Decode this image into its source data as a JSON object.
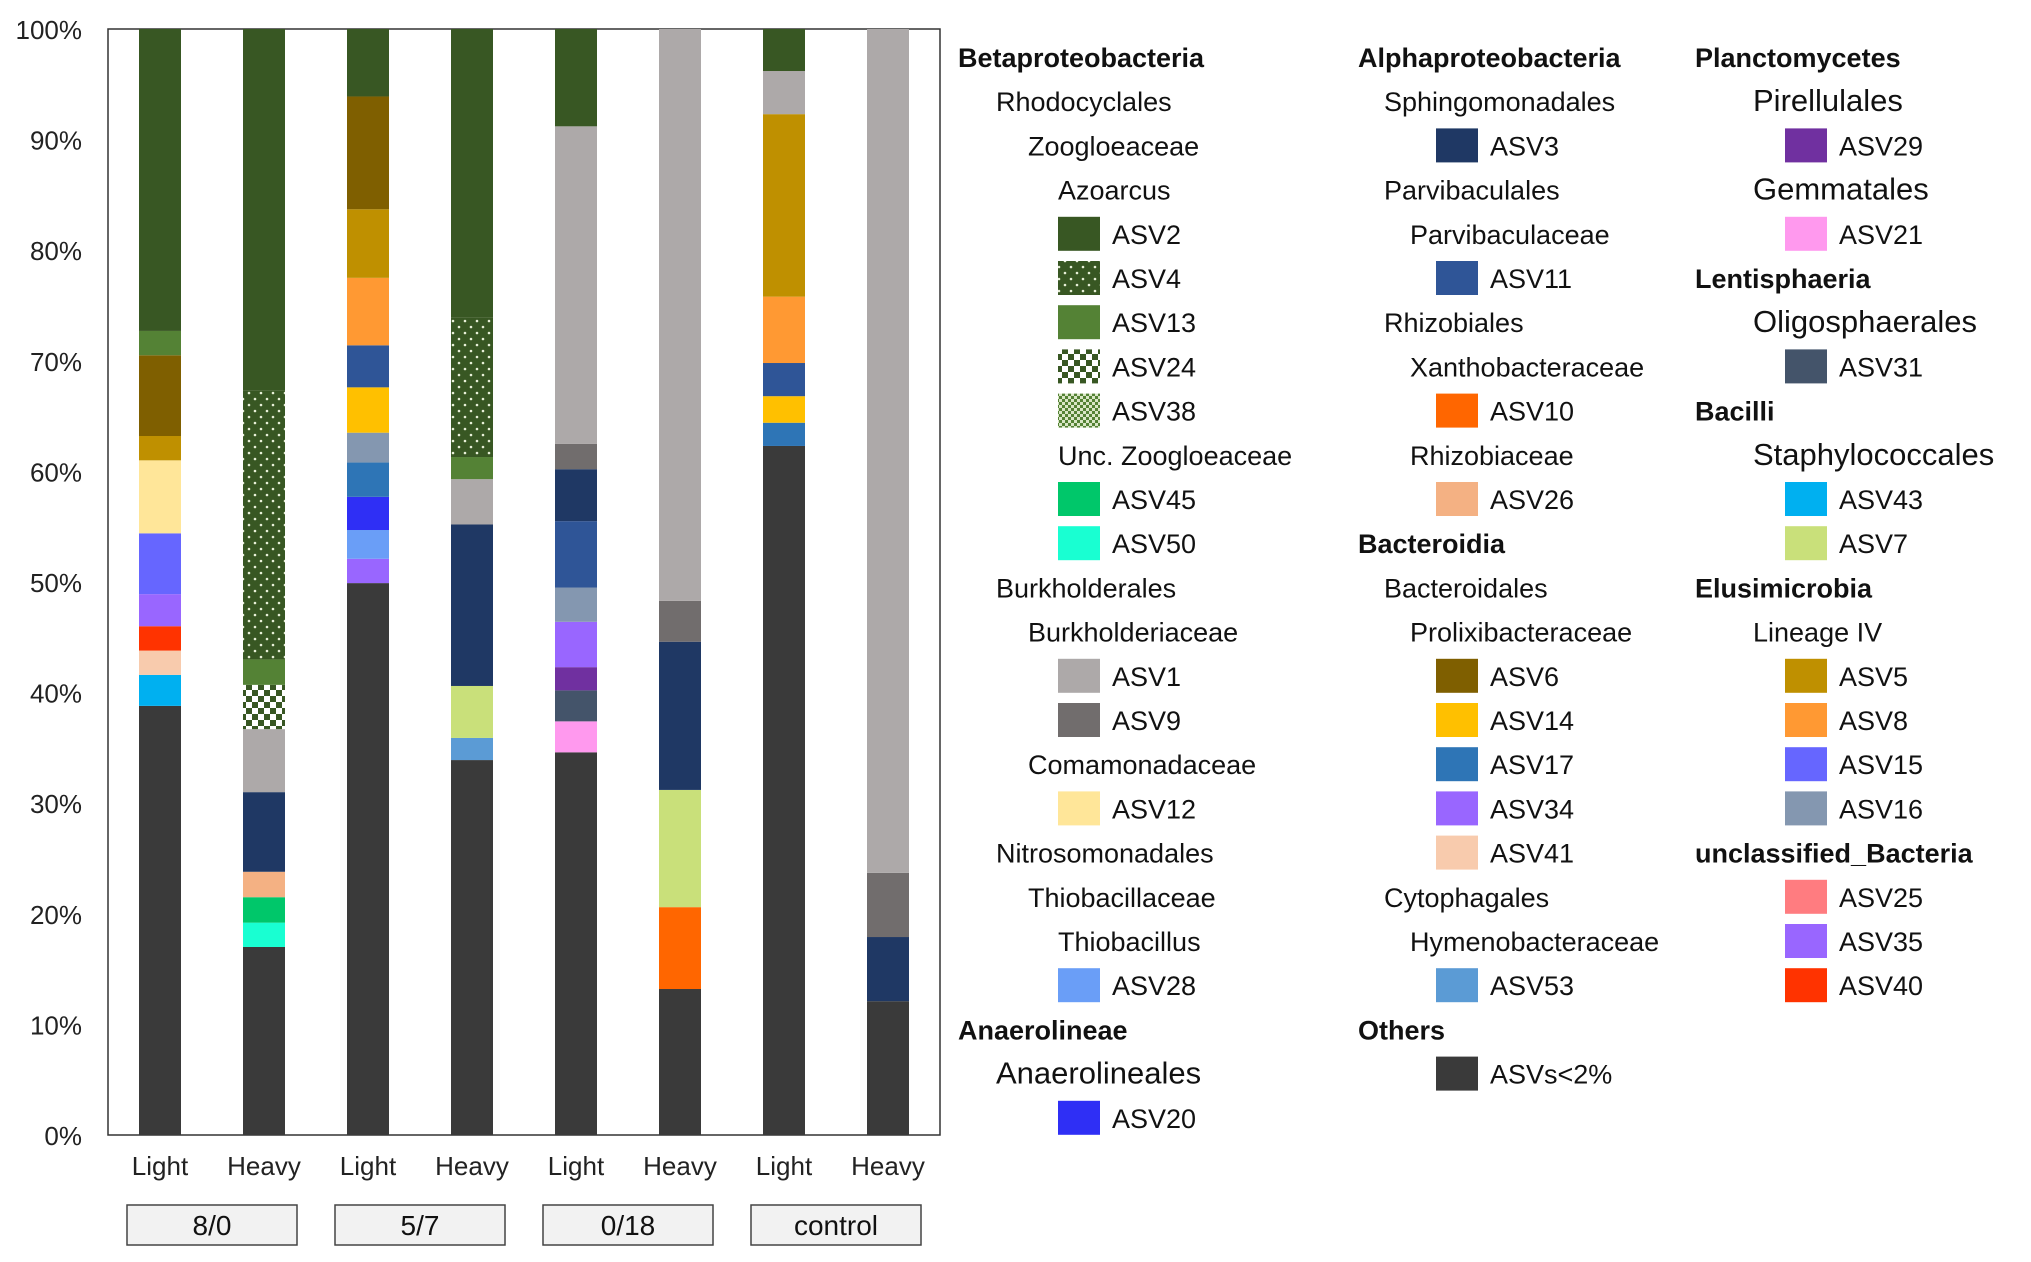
{
  "chart_data": {
    "type": "bar",
    "stacked": true,
    "percent": true,
    "ylim": [
      0,
      100
    ],
    "yticks": [
      "0%",
      "10%",
      "20%",
      "30%",
      "40%",
      "50%",
      "60%",
      "70%",
      "80%",
      "90%",
      "100%"
    ],
    "categories": [
      "Light",
      "Heavy",
      "Light",
      "Heavy",
      "Light",
      "Heavy",
      "Light",
      "Heavy"
    ],
    "groups": [
      {
        "label": "8/0",
        "members": [
          0,
          1
        ]
      },
      {
        "label": "5/7",
        "members": [
          2,
          3
        ]
      },
      {
        "label": "0/18",
        "members": [
          4,
          5
        ]
      },
      {
        "label": "control",
        "members": [
          6,
          7
        ]
      }
    ],
    "colors": {
      "ASV2": "#385723",
      "ASV4": "#385723",
      "ASV13": "#548235",
      "ASV24": "#385723",
      "ASV38": "#548235",
      "ASV45": "#00c76a",
      "ASV50": "#19ffd2",
      "ASV1": "#ada9a9",
      "ASV9": "#716d6d",
      "ASV12": "#ffe699",
      "ASV28": "#6a9ef7",
      "ASV20": "#2f2ff5",
      "ASV3": "#1f3864",
      "ASV11": "#2f5597",
      "ASV10": "#ff6600",
      "ASV26": "#f4b183",
      "ASV6": "#7f5f00",
      "ASV14": "#ffc000",
      "ASV17": "#2e75b6",
      "ASV34": "#9966ff",
      "ASV41": "#f8cbad",
      "ASV53": "#5b9bd5",
      "ASVs<2%": "#3a3a3a",
      "ASV29": "#7030a0",
      "ASV21": "#ff99ee",
      "ASV31": "#44546a",
      "ASV43": "#00b0f0",
      "ASV7": "#c9e07a",
      "ASV5": "#bf9000",
      "ASV8": "#ff9933",
      "ASV15": "#6666ff",
      "ASV16": "#8497b0",
      "ASV25": "#ff7c80",
      "ASV35": "#9966ff",
      "ASV40": "#ff3300"
    },
    "patterns": {
      "ASV4": "pat-dots",
      "ASV24": "pat-checker",
      "ASV38": "pat-fine"
    },
    "bars": [
      [
        {
          "asv": "ASVs<2%",
          "value": 38.8
        },
        {
          "asv": "ASV43",
          "value": 2.8
        },
        {
          "asv": "ASV41",
          "value": 2.2
        },
        {
          "asv": "ASV40",
          "value": 2.2
        },
        {
          "asv": "ASV35",
          "value": 2.9
        },
        {
          "asv": "ASV15",
          "value": 5.5
        },
        {
          "asv": "ASV12",
          "value": 6.6
        },
        {
          "asv": "ASV5",
          "value": 2.2
        },
        {
          "asv": "ASV6",
          "value": 7.3
        },
        {
          "asv": "ASV13",
          "value": 2.2
        },
        {
          "asv": "ASV2",
          "value": 27.3
        }
      ],
      [
        {
          "asv": "ASVs<2%",
          "value": 17.0
        },
        {
          "asv": "ASV50",
          "value": 2.2
        },
        {
          "asv": "ASV45",
          "value": 2.3
        },
        {
          "asv": "ASV26",
          "value": 2.3
        },
        {
          "asv": "ASV3",
          "value": 7.2
        },
        {
          "asv": "ASV1",
          "value": 5.7
        },
        {
          "asv": "ASV24",
          "value": 4.0
        },
        {
          "asv": "ASV13",
          "value": 2.3
        },
        {
          "asv": "ASV4",
          "value": 24.3
        },
        {
          "asv": "ASV2",
          "value": 32.7
        }
      ],
      [
        {
          "asv": "ASVs<2%",
          "value": 49.9
        },
        {
          "asv": "ASV34",
          "value": 2.2
        },
        {
          "asv": "ASV28",
          "value": 2.6
        },
        {
          "asv": "ASV20",
          "value": 3.0
        },
        {
          "asv": "ASV17",
          "value": 3.1
        },
        {
          "asv": "ASV16",
          "value": 2.7
        },
        {
          "asv": "ASV14",
          "value": 4.1
        },
        {
          "asv": "ASV11",
          "value": 3.8
        },
        {
          "asv": "ASV8",
          "value": 6.1
        },
        {
          "asv": "ASV5",
          "value": 6.2
        },
        {
          "asv": "ASV6",
          "value": 10.2
        },
        {
          "asv": "ASV2",
          "value": 6.1
        }
      ],
      [
        {
          "asv": "ASVs<2%",
          "value": 33.9
        },
        {
          "asv": "ASV53",
          "value": 2.0
        },
        {
          "asv": "ASV7",
          "value": 4.7
        },
        {
          "asv": "ASV3",
          "value": 14.6
        },
        {
          "asv": "ASV1",
          "value": 4.1
        },
        {
          "asv": "ASV13",
          "value": 2.0
        },
        {
          "asv": "ASV4",
          "value": 12.6
        },
        {
          "asv": "ASV2",
          "value": 26.1
        }
      ],
      [
        {
          "asv": "ASVs<2%",
          "value": 34.6
        },
        {
          "asv": "ASV21",
          "value": 2.8
        },
        {
          "asv": "ASV31",
          "value": 2.8
        },
        {
          "asv": "ASV29",
          "value": 2.1
        },
        {
          "asv": "ASV35",
          "value": 4.1
        },
        {
          "asv": "ASV16",
          "value": 3.1
        },
        {
          "asv": "ASV11",
          "value": 6.0
        },
        {
          "asv": "ASV3",
          "value": 4.7
        },
        {
          "asv": "ASV9",
          "value": 2.3
        },
        {
          "asv": "ASV1",
          "value": 28.7
        },
        {
          "asv": "ASV2",
          "value": 8.8
        }
      ],
      [
        {
          "asv": "ASVs<2%",
          "value": 13.2
        },
        {
          "asv": "ASV10",
          "value": 7.4
        },
        {
          "asv": "ASV7",
          "value": 10.6
        },
        {
          "asv": "ASV3",
          "value": 13.4
        },
        {
          "asv": "ASV9",
          "value": 3.7
        },
        {
          "asv": "ASV1",
          "value": 51.7
        }
      ],
      [
        {
          "asv": "ASVs<2%",
          "value": 62.3
        },
        {
          "asv": "ASV17",
          "value": 2.1
        },
        {
          "asv": "ASV14",
          "value": 2.4
        },
        {
          "asv": "ASV11",
          "value": 3.0
        },
        {
          "asv": "ASV8",
          "value": 6.0
        },
        {
          "asv": "ASV5",
          "value": 16.5
        },
        {
          "asv": "ASV1",
          "value": 3.9
        },
        {
          "asv": "ASV2",
          "value": 3.8
        }
      ],
      [
        {
          "asv": "ASVs<2%",
          "value": 12.1
        },
        {
          "asv": "ASV3",
          "value": 5.8
        },
        {
          "asv": "ASV9",
          "value": 5.8
        },
        {
          "asv": "ASV1",
          "value": 76.3
        }
      ]
    ]
  },
  "legend": {
    "columns": [
      [
        {
          "kind": "class",
          "text": "Betaproteobacteria"
        },
        {
          "kind": "order",
          "text": "Rhodocyclales"
        },
        {
          "kind": "family",
          "text": "Zoogloeaceae"
        },
        {
          "kind": "genus",
          "text": "Azoarcus"
        },
        {
          "kind": "asv",
          "asv": "ASV2"
        },
        {
          "kind": "asv",
          "asv": "ASV4"
        },
        {
          "kind": "asv",
          "asv": "ASV13"
        },
        {
          "kind": "asv",
          "asv": "ASV24"
        },
        {
          "kind": "asv",
          "asv": "ASV38"
        },
        {
          "kind": "genus",
          "text": "Unc. Zoogloeaceae"
        },
        {
          "kind": "asv",
          "asv": "ASV45"
        },
        {
          "kind": "asv",
          "asv": "ASV50"
        },
        {
          "kind": "order",
          "text": "Burkholderales"
        },
        {
          "kind": "family",
          "text": "Burkholderiaceae"
        },
        {
          "kind": "asv",
          "asv": "ASV1"
        },
        {
          "kind": "asv",
          "asv": "ASV9"
        },
        {
          "kind": "family",
          "text": "Comamonadaceae"
        },
        {
          "kind": "asv",
          "asv": "ASV12"
        },
        {
          "kind": "order",
          "text": "Nitrosomonadales"
        },
        {
          "kind": "family",
          "text": "Thiobacillaceae"
        },
        {
          "kind": "genus",
          "text": "Thiobacillus"
        },
        {
          "kind": "asv",
          "asv": "ASV28"
        },
        {
          "kind": "class",
          "text": "Anaerolineae"
        },
        {
          "kind": "order-lg",
          "text": "Anaerolineales"
        },
        {
          "kind": "asv",
          "asv": "ASV20"
        }
      ],
      [
        {
          "kind": "class",
          "text": "Alphaproteobacteria"
        },
        {
          "kind": "order",
          "text": "Sphingomonadales"
        },
        {
          "kind": "asv",
          "asv": "ASV3"
        },
        {
          "kind": "order",
          "text": "Parvibaculales"
        },
        {
          "kind": "family",
          "text": "Parvibaculaceae"
        },
        {
          "kind": "asv",
          "asv": "ASV11"
        },
        {
          "kind": "order",
          "text": "Rhizobiales"
        },
        {
          "kind": "family",
          "text": "Xanthobacteraceae"
        },
        {
          "kind": "asv",
          "asv": "ASV10"
        },
        {
          "kind": "family",
          "text": "Rhizobiaceae"
        },
        {
          "kind": "asv",
          "asv": "ASV26"
        },
        {
          "kind": "class",
          "text": "Bacteroidia"
        },
        {
          "kind": "order",
          "text": "Bacteroidales"
        },
        {
          "kind": "family",
          "text": "Prolixibacteraceae"
        },
        {
          "kind": "asv",
          "asv": "ASV6"
        },
        {
          "kind": "asv",
          "asv": "ASV14"
        },
        {
          "kind": "asv",
          "asv": "ASV17"
        },
        {
          "kind": "asv",
          "asv": "ASV34"
        },
        {
          "kind": "asv",
          "asv": "ASV41"
        },
        {
          "kind": "order",
          "text": "Cytophagales"
        },
        {
          "kind": "family",
          "text": "Hymenobacteraceae"
        },
        {
          "kind": "asv",
          "asv": "ASV53"
        },
        {
          "kind": "class",
          "text": "Others"
        },
        {
          "kind": "asv",
          "asv": "ASVs<2%"
        }
      ],
      [
        {
          "kind": "class",
          "text": "Planctomycetes"
        },
        {
          "kind": "order-lg",
          "text": "Pirellulales"
        },
        {
          "kind": "asv",
          "asv": "ASV29"
        },
        {
          "kind": "order-lg",
          "text": "Gemmatales"
        },
        {
          "kind": "asv",
          "asv": "ASV21"
        },
        {
          "kind": "class",
          "text": "Lentisphaeria"
        },
        {
          "kind": "order-lg",
          "text": "Oligosphaerales"
        },
        {
          "kind": "asv",
          "asv": "ASV31"
        },
        {
          "kind": "class",
          "text": "Bacilli"
        },
        {
          "kind": "order-lg",
          "text": "Staphylococcales"
        },
        {
          "kind": "asv",
          "asv": "ASV43"
        },
        {
          "kind": "asv",
          "asv": "ASV7"
        },
        {
          "kind": "class",
          "text": "Elusimicrobia"
        },
        {
          "kind": "order",
          "text": "Lineage IV"
        },
        {
          "kind": "asv",
          "asv": "ASV5"
        },
        {
          "kind": "asv",
          "asv": "ASV8"
        },
        {
          "kind": "asv",
          "asv": "ASV15"
        },
        {
          "kind": "asv",
          "asv": "ASV16"
        },
        {
          "kind": "class",
          "text": "unclassified_Bacteria"
        },
        {
          "kind": "asv",
          "asv": "ASV25"
        },
        {
          "kind": "asv",
          "asv": "ASV35"
        },
        {
          "kind": "asv",
          "asv": "ASV40"
        }
      ]
    ]
  }
}
